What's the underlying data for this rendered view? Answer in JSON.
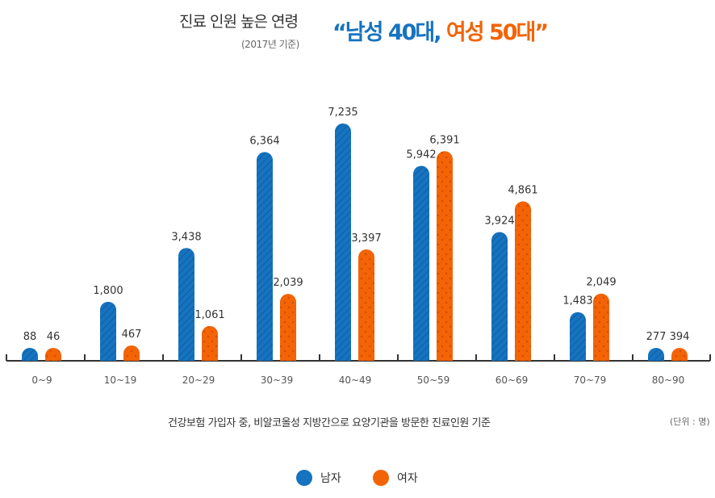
{
  "title": "진료 인원 높은 연령",
  "subtitle": "(2017년 기준)",
  "headline": {
    "open": "“",
    "male_part": "남성 40대,",
    "female_part": "여성 50대",
    "close": "”"
  },
  "note": "건강보험 가입자 중, 비알코올성 지방간으로 요양기관을 방문한 진료인원 기준",
  "unit": "(단위 : 명)",
  "colors": {
    "male": "#1673bf",
    "female": "#f26405",
    "axis": "#333333"
  },
  "chart_data": {
    "type": "bar",
    "categories": [
      "0~9",
      "10~19",
      "20~29",
      "30~39",
      "40~49",
      "50~59",
      "60~69",
      "70~79",
      "80~90"
    ],
    "series": [
      {
        "name": "남자",
        "values": [
          88,
          1800,
          3438,
          6364,
          7235,
          5942,
          3924,
          1483,
          277
        ],
        "labels": [
          "88",
          "1,800",
          "3,438",
          "6,364",
          "7,235",
          "5,942",
          "3,924",
          "1,483",
          "277"
        ]
      },
      {
        "name": "여자",
        "values": [
          46,
          467,
          1061,
          2039,
          3397,
          6391,
          4861,
          2049,
          394
        ],
        "labels": [
          "46",
          "467",
          "1,061",
          "2,039",
          "3,397",
          "6,391",
          "4,861",
          "2,049",
          "394"
        ]
      }
    ],
    "legend_position": "bottom",
    "grid": false
  }
}
